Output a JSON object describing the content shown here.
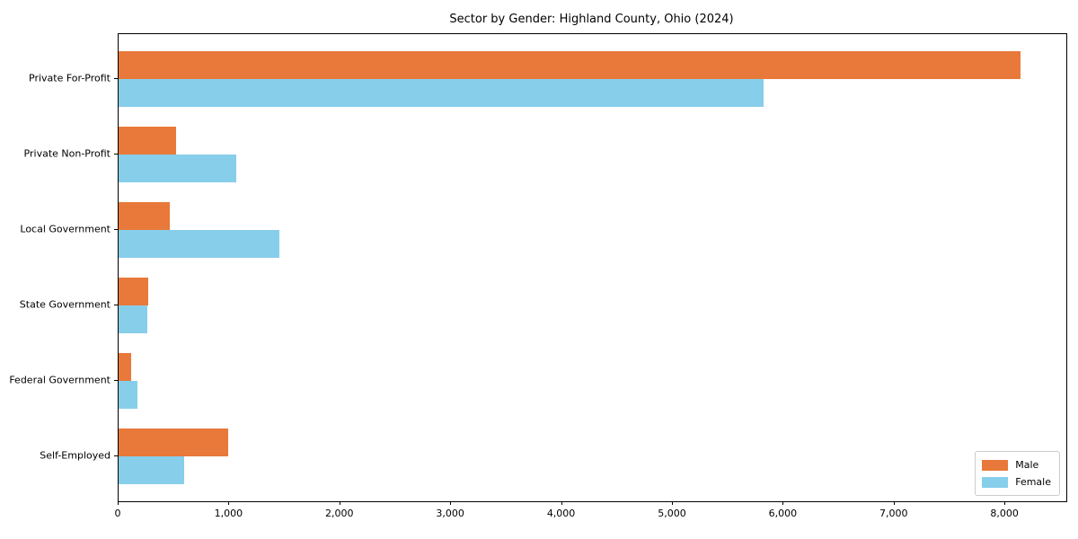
{
  "chart_data": {
    "type": "bar",
    "orientation": "horizontal",
    "title": "Sector by Gender: Highland County, Ohio (2024)",
    "categories": [
      "Private For-Profit",
      "Private Non-Profit",
      "Local Government",
      "State Government",
      "Federal Government",
      "Self-Employed"
    ],
    "series": [
      {
        "name": "Male",
        "color": "#e8793a",
        "values": [
          8140,
          520,
          465,
          270,
          113,
          985
        ]
      },
      {
        "name": "Female",
        "color": "#87ceeb",
        "values": [
          5820,
          1064,
          1450,
          262,
          173,
          592
        ]
      }
    ],
    "xlabel": "",
    "ylabel": "",
    "xlim": [
      0,
      8550
    ],
    "xticks": [
      0,
      1000,
      2000,
      3000,
      4000,
      5000,
      6000,
      7000,
      8000
    ],
    "xtick_labels": [
      "0",
      "1,000",
      "2,000",
      "3,000",
      "4,000",
      "5,000",
      "6,000",
      "7,000",
      "8,000"
    ],
    "grid": false,
    "legend": {
      "position": "lower right",
      "entries": [
        "Male",
        "Female"
      ]
    }
  }
}
